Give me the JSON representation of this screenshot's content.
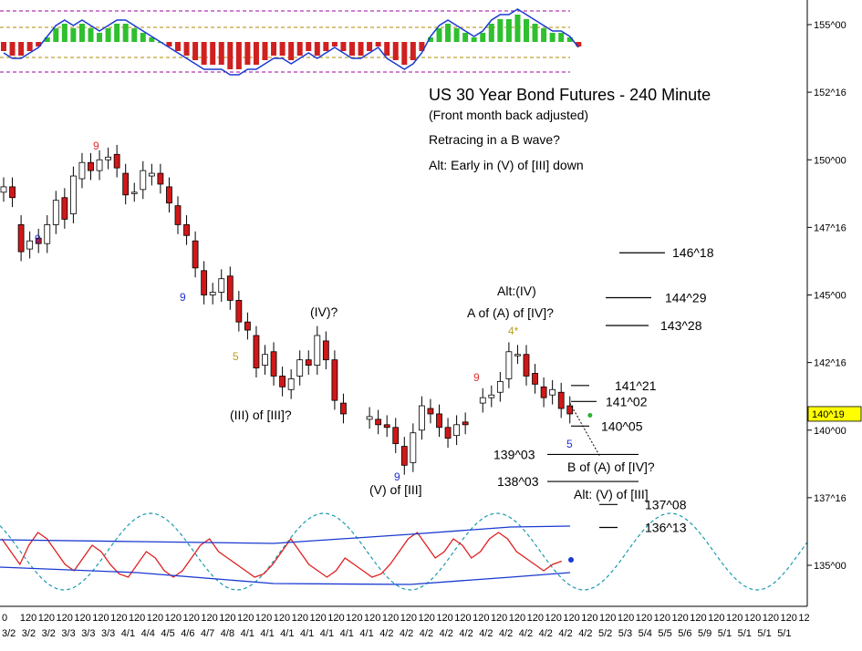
{
  "chart_data": {
    "type": "candlestick",
    "title": "US 30 Year Bond Futures - 240 Minute",
    "subtitle": "(Front month back adjusted)",
    "notes": [
      "Retracing in a B wave?",
      "Alt: Early in (V) of [III] down"
    ],
    "last_price": "140^19",
    "y_axis": {
      "labels": [
        "155^00",
        "152^16",
        "150^00",
        "147^16",
        "145^00",
        "142^16",
        "140^00",
        "137^16",
        "135^00"
      ],
      "values": [
        155.0,
        152.5,
        150.0,
        147.5,
        145.0,
        142.5,
        140.0,
        137.5,
        135.0
      ],
      "ylim": [
        133.7,
        155.9
      ]
    },
    "x_axis": {
      "period_row": [
        "0",
        "120",
        "120",
        "120",
        "120",
        "120",
        "120",
        "120",
        "120",
        "120",
        "120",
        "120",
        "120",
        "120",
        "120",
        "120",
        "120",
        "120",
        "120",
        "120",
        "120",
        "120",
        "120",
        "120",
        "120",
        "120",
        "120",
        "120",
        "120",
        "120",
        "120",
        "120",
        "120",
        "120",
        "120",
        "120",
        "120",
        "120",
        "120",
        "120",
        "120",
        "120",
        "120",
        "120",
        "12"
      ],
      "date_row": [
        "3/2",
        "3/2",
        "3/2",
        "3/3",
        "3/3",
        "3/3",
        "4/1",
        "4/4",
        "4/5",
        "4/6",
        "4/7",
        "4/8",
        "4/1",
        "4/1",
        "4/1",
        "4/1",
        "4/1",
        "4/1",
        "4/1",
        "4/2",
        "4/2",
        "4/2",
        "4/2",
        "4/2",
        "4/2",
        "4/2",
        "4/2",
        "4/2",
        "4/2",
        "4/2",
        "5/2",
        "5/3",
        "5/4",
        "5/5",
        "5/6",
        "5/9",
        "5/1",
        "5/1",
        "5/1",
        "5/1"
      ]
    },
    "price_series": {
      "close": [
        149.0,
        148.6,
        146.6,
        147.0,
        146.9,
        147.6,
        148.5,
        147.8,
        149.4,
        149.9,
        149.6,
        150.0,
        150.1,
        149.7,
        148.7,
        148.8,
        149.6,
        149.5,
        149.1,
        148.4,
        147.6,
        147.2,
        146.0,
        145.0,
        145.1,
        145.6,
        144.8,
        144.0,
        143.7,
        142.3,
        142.8,
        142.0,
        141.6,
        141.9,
        142.6,
        142.4,
        143.5,
        142.6,
        141.1,
        140.6,
        null,
        null,
        140.5,
        140.2,
        140.1,
        139.5,
        138.7,
        139.9,
        140.9,
        140.6,
        140.1,
        139.7,
        140.2,
        140.2,
        null,
        141.2,
        141.3,
        141.8,
        142.9,
        142.8,
        142.0,
        141.7,
        141.2,
        141.5,
        140.8,
        140.6
      ],
      "open": [
        148.8,
        149.0,
        147.6,
        146.7,
        147.1,
        146.9,
        147.6,
        148.6,
        148.0,
        149.3,
        149.9,
        149.6,
        150.0,
        150.2,
        149.5,
        148.8,
        148.9,
        149.4,
        149.5,
        149.0,
        148.3,
        147.6,
        147.0,
        145.9,
        145.0,
        145.1,
        145.7,
        144.8,
        144.0,
        143.5,
        142.4,
        142.9,
        142.0,
        141.5,
        142.0,
        142.6,
        142.4,
        143.3,
        142.6,
        141.0,
        null,
        null,
        140.4,
        140.4,
        140.2,
        140.1,
        139.4,
        138.8,
        140.0,
        140.8,
        140.6,
        140.1,
        139.8,
        140.3,
        null,
        141.0,
        141.2,
        141.4,
        141.9,
        142.8,
        142.8,
        142.1,
        141.6,
        141.3,
        141.4,
        140.9
      ]
    },
    "wave_labels": [
      {
        "text": "(IV)?",
        "price": 144.3,
        "bar": 36
      },
      {
        "text": "(III) of [III]?",
        "price": 140.5,
        "bar": 32
      },
      {
        "text": "(V) of [III]",
        "price": 137.3,
        "bar": 46
      },
      {
        "text": "Alt:(IV)",
        "price": 145.3,
        "bar": 60
      },
      {
        "text": "A of (A) of [IV]?",
        "price": 144.2,
        "bar": 60
      }
    ],
    "count_labels": [
      {
        "text": "9",
        "color": "#e03030",
        "bar": 11,
        "price": 150.5
      },
      {
        "text": "9",
        "color": "#2030d0",
        "bar": 3,
        "price": 146.8
      },
      {
        "text": "9",
        "color": "#2030d0",
        "bar": 22,
        "price": 144.8
      },
      {
        "text": "5",
        "color": "#b8a020",
        "bar": 28,
        "price": 142.6
      },
      {
        "text": "9",
        "color": "#2030d0",
        "bar": 46,
        "price": 138.2
      },
      {
        "text": "9",
        "color": "#e03030",
        "bar": 56,
        "price": 141.7
      },
      {
        "text": "4*",
        "color": "#b8a020",
        "bar": 61,
        "price": 143.3
      },
      {
        "text": "5",
        "color": "#2030d0",
        "bar": 67,
        "price": 139.4
      }
    ],
    "levels": [
      {
        "label": "146^18",
        "price": 146.56
      },
      {
        "label": "144^29",
        "price": 144.9
      },
      {
        "label": "143^28",
        "price": 143.87
      },
      {
        "label": "141^21",
        "price": 141.65
      },
      {
        "label": "141^02",
        "price": 141.06
      },
      {
        "label": "140^05",
        "price": 140.15
      },
      {
        "label": "139^03",
        "price": 139.1
      },
      {
        "label": "138^03",
        "price": 138.1
      },
      {
        "label": "137^08",
        "price": 137.25
      },
      {
        "label": "136^13",
        "price": 136.4
      }
    ],
    "level_notes": [
      "B of (A) of [IV]?",
      "Alt: (V) of [III]"
    ],
    "oscillator_top": {
      "histogram": [
        -2,
        -3,
        -3,
        -2,
        -1,
        1,
        3,
        4,
        3,
        4,
        3,
        2,
        3,
        4,
        4,
        3,
        2,
        1,
        0,
        -1,
        -2,
        -3,
        -4,
        -5,
        -5,
        -5,
        -6,
        -6,
        -5,
        -5,
        -4,
        -3,
        -3,
        -4,
        -3,
        -2,
        -3,
        -2,
        -1,
        -2,
        -3,
        -3,
        -2,
        -1,
        -3,
        -4,
        -5,
        -4,
        -2,
        1,
        3,
        4,
        3,
        2,
        1,
        2,
        4,
        5,
        5,
        6,
        5,
        4,
        3,
        2,
        2,
        1,
        -1
      ]
    },
    "oscillator_bottom": {
      "red_line": [
        0.7,
        0.5,
        0.3,
        0.6,
        0.8,
        0.7,
        0.5,
        0.3,
        0.2,
        0.4,
        0.6,
        0.5,
        0.3,
        0.15,
        0.1,
        0.3,
        0.5,
        0.4,
        0.2,
        0.1,
        0.2,
        0.4,
        0.6,
        0.7,
        0.5,
        0.4,
        0.3,
        0.2,
        0.1,
        0.15,
        0.3,
        0.5,
        0.7,
        0.5,
        0.3,
        0.2,
        0.1,
        0.2,
        0.4,
        0.3,
        0.2,
        0.1,
        0.15,
        0.3,
        0.5,
        0.7,
        0.8,
        0.6,
        0.4,
        0.5,
        0.7,
        0.6,
        0.4,
        0.5,
        0.7,
        0.8,
        0.7,
        0.5,
        0.4,
        0.3,
        0.2,
        0.3,
        0.35
      ]
    }
  }
}
